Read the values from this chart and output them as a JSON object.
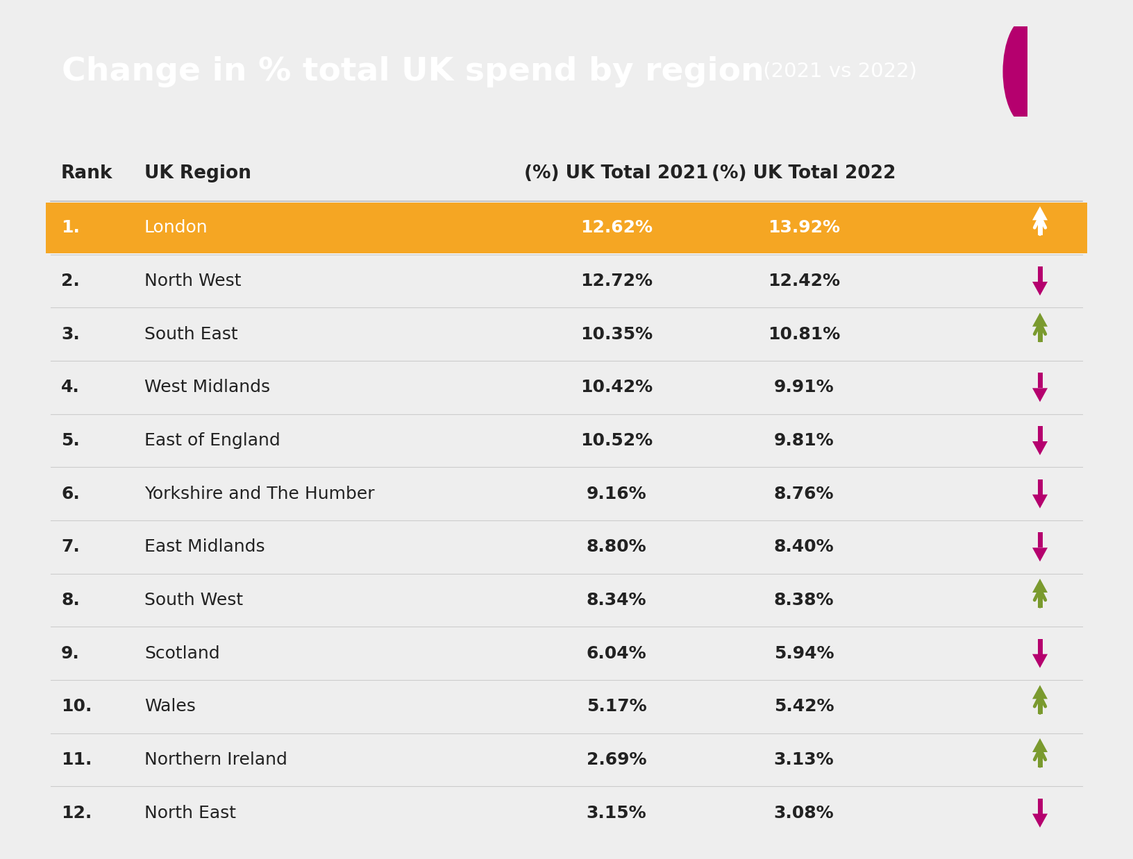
{
  "title_main": "Change in % total UK spend by region",
  "title_sub": " (2021 vs 2022)",
  "title_bg_color": "#B5006E",
  "highlight_color": "#F5A623",
  "bg_color": "#EEEEEE",
  "table_bg_color": "#FFFFFF",
  "header_text_color": "#222222",
  "normal_text_color": "#222222",
  "highlight_text_color": "#FFFFFF",
  "up_color_green": "#7A9A2E",
  "down_color": "#B5006E",
  "col_headers": [
    "Rank",
    "UK Region",
    "(%) UK Total 2021",
    "(%) UK Total 2022",
    ""
  ],
  "rows": [
    {
      "rank": "1.",
      "region": "London",
      "val2021": "12.62%",
      "val2022": "13.92%",
      "direction": "up",
      "highlight": true
    },
    {
      "rank": "2.",
      "region": "North West",
      "val2021": "12.72%",
      "val2022": "12.42%",
      "direction": "down",
      "highlight": false
    },
    {
      "rank": "3.",
      "region": "South East",
      "val2021": "10.35%",
      "val2022": "10.81%",
      "direction": "up",
      "highlight": false
    },
    {
      "rank": "4.",
      "region": "West Midlands",
      "val2021": "10.42%",
      "val2022": "9.91%",
      "direction": "down",
      "highlight": false
    },
    {
      "rank": "5.",
      "region": "East of England",
      "val2021": "10.52%",
      "val2022": "9.81%",
      "direction": "down",
      "highlight": false
    },
    {
      "rank": "6.",
      "region": "Yorkshire and The Humber",
      "val2021": "9.16%",
      "val2022": "8.76%",
      "direction": "down",
      "highlight": false
    },
    {
      "rank": "7.",
      "region": "East Midlands",
      "val2021": "8.80%",
      "val2022": "8.40%",
      "direction": "down",
      "highlight": false
    },
    {
      "rank": "8.",
      "region": "South West",
      "val2021": "8.34%",
      "val2022": "8.38%",
      "direction": "up",
      "highlight": false
    },
    {
      "rank": "9.",
      "region": "Scotland",
      "val2021": "6.04%",
      "val2022": "5.94%",
      "direction": "down",
      "highlight": false
    },
    {
      "rank": "10.",
      "region": "Wales",
      "val2021": "5.17%",
      "val2022": "5.42%",
      "direction": "up",
      "highlight": false
    },
    {
      "rank": "11.",
      "region": "Northern Ireland",
      "val2021": "2.69%",
      "val2022": "3.13%",
      "direction": "up",
      "highlight": false
    },
    {
      "rank": "12.",
      "region": "North East",
      "val2021": "3.15%",
      "val2022": "3.08%",
      "direction": "down",
      "highlight": false
    }
  ]
}
